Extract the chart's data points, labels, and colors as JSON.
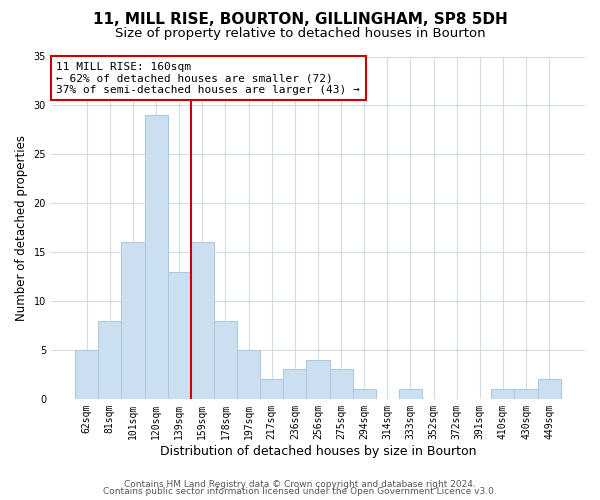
{
  "title": "11, MILL RISE, BOURTON, GILLINGHAM, SP8 5DH",
  "subtitle": "Size of property relative to detached houses in Bourton",
  "xlabel": "Distribution of detached houses by size in Bourton",
  "ylabel": "Number of detached properties",
  "bar_labels": [
    "62sqm",
    "81sqm",
    "101sqm",
    "120sqm",
    "139sqm",
    "159sqm",
    "178sqm",
    "197sqm",
    "217sqm",
    "236sqm",
    "256sqm",
    "275sqm",
    "294sqm",
    "314sqm",
    "333sqm",
    "352sqm",
    "372sqm",
    "391sqm",
    "410sqm",
    "430sqm",
    "449sqm"
  ],
  "bar_values": [
    5,
    8,
    16,
    29,
    13,
    16,
    8,
    5,
    2,
    3,
    4,
    3,
    1,
    0,
    1,
    0,
    0,
    0,
    1,
    1,
    2
  ],
  "bar_color": "#ccdff0",
  "bar_edge_color": "#a8c8e0",
  "vline_color": "#cc0000",
  "vline_position": 4.5,
  "annotation_title": "11 MILL RISE: 160sqm",
  "annotation_line1": "← 62% of detached houses are smaller (72)",
  "annotation_line2": "37% of semi-detached houses are larger (43) →",
  "annotation_box_color": "#ffffff",
  "annotation_box_edge_color": "#cc0000",
  "ylim": [
    0,
    35
  ],
  "yticks": [
    0,
    5,
    10,
    15,
    20,
    25,
    30,
    35
  ],
  "footer1": "Contains HM Land Registry data © Crown copyright and database right 2024.",
  "footer2": "Contains public sector information licensed under the Open Government Licence v3.0.",
  "background_color": "#ffffff",
  "grid_color": "#d0dce8",
  "title_fontsize": 11,
  "subtitle_fontsize": 9.5,
  "xlabel_fontsize": 9,
  "ylabel_fontsize": 8.5,
  "tick_fontsize": 7,
  "annotation_fontsize": 8,
  "footer_fontsize": 6.5
}
